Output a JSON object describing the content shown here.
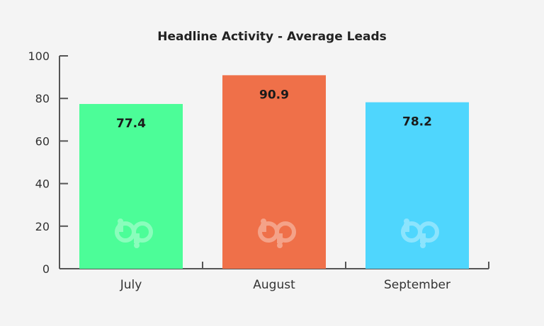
{
  "chart_data": {
    "type": "bar",
    "title": "Headline Activity - Average Leads",
    "xlabel": "",
    "ylabel": "",
    "categories": [
      "July",
      "August",
      "September"
    ],
    "values": [
      77.4,
      90.9,
      78.2
    ],
    "data_labels": [
      "77.4",
      "90.9",
      "78.2"
    ],
    "colors": [
      "#4cfd98",
      "#ef7049",
      "#4fd6fd"
    ],
    "ylim": [
      0,
      100
    ],
    "yticks": [
      0,
      20,
      40,
      60,
      80,
      100
    ],
    "ytick_labels": [
      "0",
      "20",
      "40",
      "60",
      "80",
      "100"
    ],
    "grid": false,
    "legend": "none",
    "watermark_text": "bp",
    "axis_color": "#555555"
  }
}
